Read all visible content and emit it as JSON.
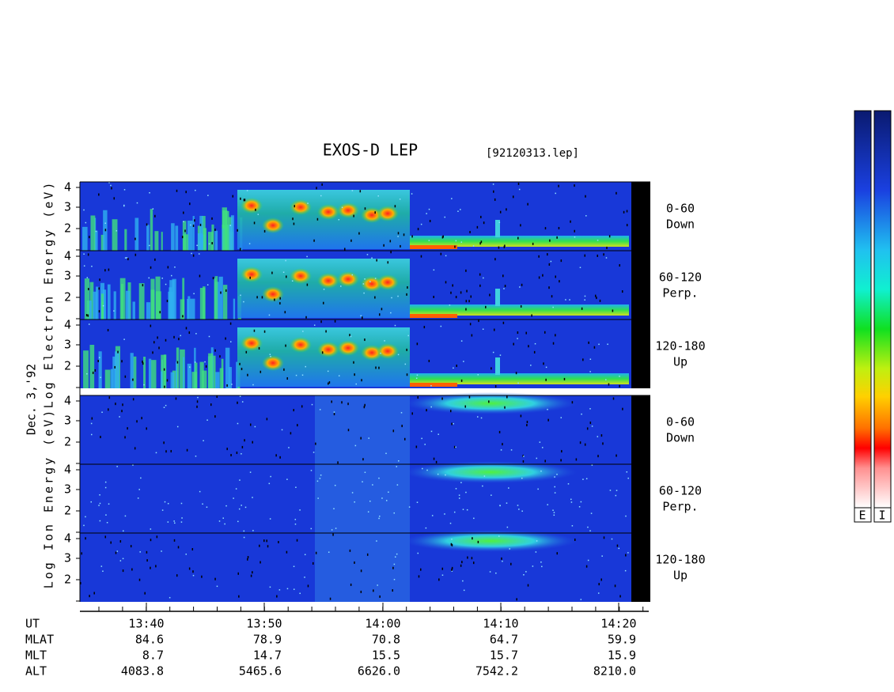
{
  "header": {
    "title": "EXOS-D LEP",
    "file": "[92120313.lep]"
  },
  "electron_axis_label": "Log Electron Energy (eV)",
  "ion_axis_label": "Log Ion Energy (eV)",
  "date": "Dec. 3,'92",
  "energy_ticks": [
    "4",
    "3",
    "2"
  ],
  "panels": [
    {
      "range": "0-60",
      "direction": "Down"
    },
    {
      "range": "60-120",
      "direction": "Perp."
    },
    {
      "range": "120-180",
      "direction": "Up"
    },
    {
      "range": "0-60",
      "direction": "Down"
    },
    {
      "range": "60-120",
      "direction": "Perp."
    },
    {
      "range": "120-180",
      "direction": "Up"
    }
  ],
  "table": {
    "rows": [
      {
        "label": "UT",
        "values": [
          "13:40",
          "13:50",
          "14:00",
          "14:10",
          "14:20"
        ]
      },
      {
        "label": "MLAT",
        "values": [
          "84.6",
          "78.9",
          "70.8",
          "64.7",
          "59.9"
        ]
      },
      {
        "label": "MLT",
        "values": [
          "8.7",
          "14.7",
          "15.5",
          "15.7",
          "15.9"
        ]
      },
      {
        "label": "ALT",
        "values": [
          "4083.8",
          "5465.6",
          "6626.0",
          "7542.2",
          "8210.0"
        ]
      }
    ]
  },
  "colorbars": [
    "E",
    "I"
  ]
}
